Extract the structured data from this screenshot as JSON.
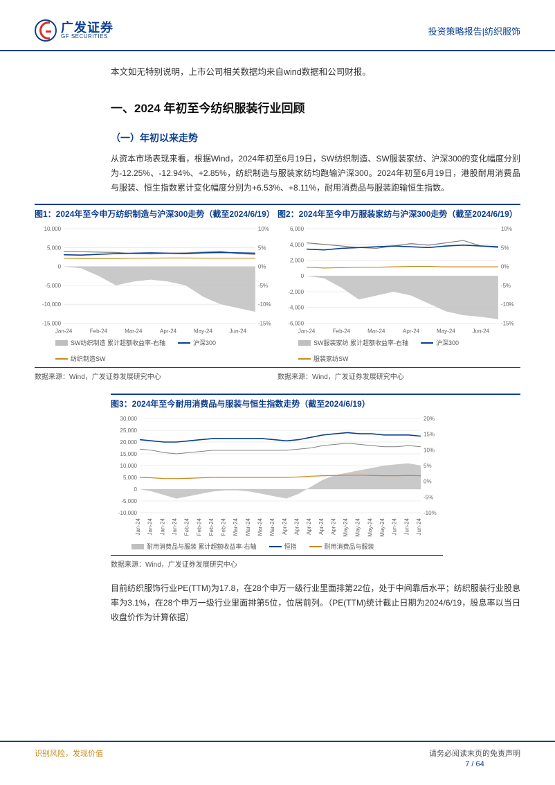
{
  "header": {
    "logo_cn": "广发证券",
    "logo_en": "GF SECURITIES",
    "right": "投资策略报告|纺织服饰"
  },
  "intro": "本文如无特别说明，上市公司相关数据均来自wind数据和公司财报。",
  "h1": "一、2024 年初至今纺织服装行业回顾",
  "h2": "（一）年初以来走势",
  "para1": "从资本市场表现来看，根据Wind，2024年初至6月19日，SW纺织制造、SW服装家纺、沪深300的变化幅度分别为-12.25%、-12.94%、+2.85%，纺织制造与服装家纺均跑输沪深300。2024年初至6月19日，港股耐用消费品与服装、恒生指数累计变化幅度分别为+6.53%、+8.11%，耐用消费品与服装跑输恒生指数。",
  "chart1": {
    "title": "图1：2024年至今申万纺织制造与沪深300走势（截至2024/6/19）",
    "type": "line+area",
    "xlabels": [
      "Jan-24",
      "Feb-24",
      "Mar-24",
      "Apr-24",
      "May-24",
      "Jun-24"
    ],
    "y1_ticks": [
      -15000,
      -10000,
      -5000,
      0,
      5000,
      10000
    ],
    "y2_ticks": [
      -15,
      -10,
      -5,
      0,
      5,
      10
    ],
    "y2_suffix": "%",
    "series": [
      {
        "name": "SW纺织制造",
        "type": "line",
        "color": "#808080",
        "width": 1.2,
        "values": [
          4000,
          3900,
          3800,
          3700,
          3400,
          3300,
          3500,
          3600,
          3800,
          4000,
          3400,
          3200
        ]
      },
      {
        "name": "沪深300",
        "type": "line",
        "color": "#0d3f8f",
        "width": 1.6,
        "values": [
          3100,
          3000,
          3200,
          3400,
          3500,
          3600,
          3500,
          3400,
          3600,
          3700,
          3600,
          3500
        ]
      },
      {
        "name": "纺织制造SW 累计超额收益率-右轴",
        "type": "line",
        "color": "#c78a1e",
        "width": 1.2,
        "values": [
          2200,
          2100,
          2100,
          2100,
          2200,
          2200,
          2250,
          2250,
          2200,
          2200,
          2200,
          2200
        ]
      },
      {
        "name": "area",
        "type": "area",
        "color": "#bfbfbf",
        "values": [
          0,
          -500,
          -2500,
          -5000,
          -4000,
          -3500,
          -4000,
          -5000,
          -8000,
          -10000,
          -11000,
          -12000
        ]
      }
    ],
    "legend": [
      {
        "swatch": "bar",
        "color": "#bfbfbf",
        "label": "SW纺织制造 累计超额收益率-右轴"
      },
      {
        "swatch": "line",
        "color": "#0d3f8f",
        "label": "沪深300"
      },
      {
        "swatch": "line",
        "color": "#c78a1e",
        "label": "纺织制造SW"
      }
    ],
    "source": "数据来源：Wind，广发证券发展研究中心",
    "background_color": "#ffffff",
    "grid_color": "#d9d9d9",
    "label_fontsize": 8,
    "tick_fontsize": 8
  },
  "chart2": {
    "title": "图2：2024年至今申万服装家纺与沪深300走势（截至2024/6/19）",
    "type": "line+area",
    "xlabels": [
      "Jan-24",
      "Feb-24",
      "Mar-24",
      "Apr-24",
      "May-24",
      "Jun-24"
    ],
    "y1_ticks": [
      -6000,
      -4000,
      -2000,
      0,
      2000,
      4000,
      6000
    ],
    "y2_ticks": [
      -15,
      -10,
      -5,
      0,
      5,
      10
    ],
    "y2_suffix": "%",
    "series": [
      {
        "name": "SW服装家纺",
        "type": "line",
        "color": "#808080",
        "width": 1.2,
        "values": [
          4200,
          4000,
          3800,
          3600,
          3500,
          3800,
          4100,
          3900,
          4200,
          4500,
          3800,
          3600
        ]
      },
      {
        "name": "沪深300",
        "type": "line",
        "color": "#0d3f8f",
        "width": 1.6,
        "values": [
          3400,
          3300,
          3500,
          3600,
          3700,
          3800,
          3700,
          3600,
          3800,
          3900,
          3800,
          3700
        ]
      },
      {
        "name": "服装家纺SW",
        "type": "line",
        "color": "#c78a1e",
        "width": 1.2,
        "values": [
          1100,
          1000,
          1050,
          1100,
          1100,
          1150,
          1200,
          1200,
          1150,
          1150,
          1150,
          1150
        ]
      },
      {
        "name": "area",
        "type": "area",
        "color": "#bfbfbf",
        "values": [
          0,
          -300,
          -1500,
          -3000,
          -2500,
          -2000,
          -2500,
          -3500,
          -4500,
          -5000,
          -5200,
          -5500
        ]
      }
    ],
    "legend": [
      {
        "swatch": "bar",
        "color": "#bfbfbf",
        "label": "SW服装家纺 累计超额收益率-右轴"
      },
      {
        "swatch": "line",
        "color": "#0d3f8f",
        "label": "沪深300"
      },
      {
        "swatch": "line",
        "color": "#c78a1e",
        "label": "服装家纺SW"
      }
    ],
    "source": "数据来源：Wind，广发证券发展研究中心",
    "background_color": "#ffffff",
    "grid_color": "#d9d9d9",
    "label_fontsize": 8,
    "tick_fontsize": 8
  },
  "chart3": {
    "title": "图3：2024年至今耐用消费品与服装与恒生指数走势（截至2024/6/19）",
    "type": "line+area",
    "xlabels": [
      "Jan-24",
      "Jan-24",
      "Jan-24",
      "Jan-24",
      "Feb-24",
      "Feb-24",
      "Feb-24",
      "Feb-24",
      "Mar-24",
      "Mar-24",
      "Mar-24",
      "Mar-24",
      "Apr-24",
      "Apr-24",
      "Apr-24",
      "Apr-24",
      "Apr-24",
      "May-24",
      "May-24",
      "May-24",
      "May-24",
      "Jun-24",
      "Jun-24",
      "Jun-24"
    ],
    "y1_ticks": [
      -10000,
      -5000,
      0,
      5000,
      10000,
      15000,
      20000,
      25000,
      30000
    ],
    "y2_ticks": [
      -10,
      -5,
      0,
      5,
      10,
      15,
      20
    ],
    "y2_suffix": "%",
    "series": [
      {
        "name": "耐用消费品与服装",
        "type": "line",
        "color": "#808080",
        "width": 1.0,
        "values": [
          17000,
          16500,
          15500,
          15000,
          15500,
          16000,
          16500,
          16500,
          16500,
          16500,
          16500,
          16500,
          16500,
          17000,
          17500,
          18500,
          19000,
          19500,
          19000,
          18500,
          18000,
          18000,
          18500,
          18000
        ]
      },
      {
        "name": "恒指",
        "type": "line",
        "color": "#0d3f8f",
        "width": 1.6,
        "values": [
          21000,
          20500,
          20000,
          20000,
          20500,
          21000,
          21500,
          21500,
          21500,
          21500,
          21500,
          21000,
          20500,
          21000,
          22000,
          23000,
          23500,
          24000,
          23500,
          23500,
          23000,
          23000,
          23000,
          22500
        ]
      },
      {
        "name": "耐用消费品与服装",
        "type": "line",
        "color": "#c78a1e",
        "width": 1.2,
        "values": [
          5000,
          4800,
          4500,
          4500,
          4600,
          4800,
          5000,
          5000,
          5000,
          5000,
          5000,
          5000,
          5000,
          5200,
          5500,
          5700,
          5800,
          5900,
          5900,
          5800,
          5700,
          5700,
          5800,
          5700
        ]
      },
      {
        "name": "area",
        "type": "area",
        "color": "#bfbfbf",
        "values": [
          0,
          -1000,
          -2500,
          -4000,
          -3000,
          -2000,
          -1000,
          -500,
          -500,
          -1000,
          -2000,
          -3000,
          -4000,
          -2000,
          1000,
          4000,
          6000,
          7000,
          8000,
          9000,
          10000,
          10500,
          11000,
          10000
        ]
      }
    ],
    "legend": [
      {
        "swatch": "bar",
        "color": "#bfbfbf",
        "label": "耐用消费品与服装 累计超额收益率-右轴"
      },
      {
        "swatch": "line",
        "color": "#0d3f8f",
        "label": "恒指"
      },
      {
        "swatch": "line",
        "color": "#c78a1e",
        "label": "耐用消费品与服装"
      }
    ],
    "source": "数据来源：Wind，广发证券发展研究中心",
    "background_color": "#ffffff",
    "grid_color": "#d9d9d9",
    "label_fontsize": 8,
    "tick_fontsize": 8
  },
  "para2": "目前纺织服饰行业PE(TTM)为17.8，在28个申万一级行业里面排第22位，处于中间靠后水平；纺织服装行业股息率为3.1%，在28个申万一级行业里面排第5位，位居前列。（PE(TTM)统计截止日期为2024/6/19，股息率以当日收盘价作为计算依据）",
  "footer": {
    "left": "识别风险，发现价值",
    "right": "请务必阅读末页的免责声明",
    "page": "7 / 64"
  },
  "colors": {
    "brand_blue": "#0d3f8f",
    "brand_red": "#d92e2b",
    "brand_gold": "#c78a1e",
    "grey_fill": "#bfbfbf",
    "text": "#333333"
  }
}
